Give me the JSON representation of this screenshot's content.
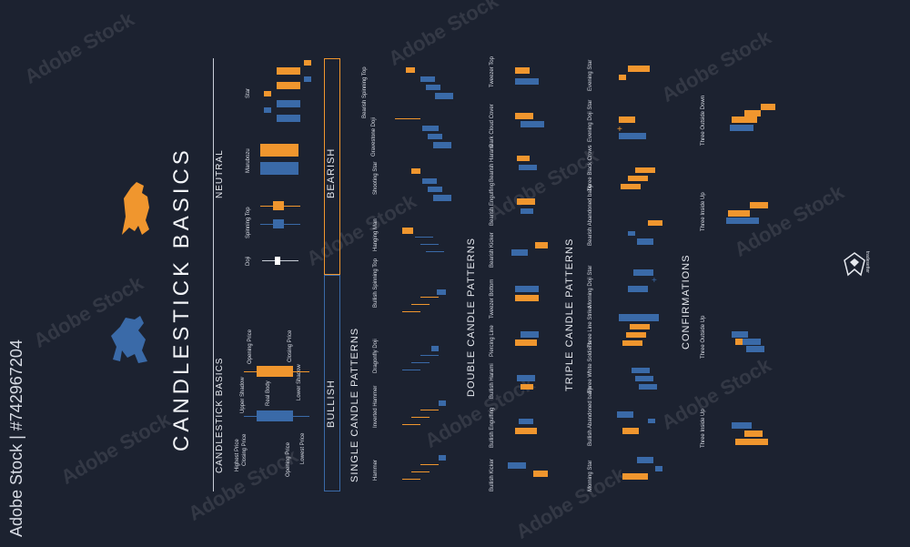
{
  "title": "CANDLESTICK BASICS",
  "sections": {
    "basics": "CANDLESTICK BASICS",
    "neutral": "NEUTRAL",
    "bearish": "BEARISH",
    "bullish": "BULLISH",
    "single": "SINGLE CANDLE PATTERNS",
    "double": "DOUBLE CANDLE PATTERNS",
    "triple": "TRIPLE CANDLE PATTERNS",
    "confirmations": "CONFIRMATIONS"
  },
  "basics_labels": {
    "highest_price": "Highest Price",
    "closing_price_left": "Closing Price",
    "upper_shadow": "Upper Shadow",
    "opening_price_top": "Opening Price",
    "real_body": "Real Body",
    "closing_price_right": "Closing Price",
    "opening_price_bottom": "Opening Price",
    "lower_shadow": "Lower Shadow",
    "lowest_price": "Lowest Price"
  },
  "neutral_patterns": [
    "Doji",
    "Spinning Top",
    "Marubozu",
    "Star"
  ],
  "single_bearish": [
    "Bearish Spinning Top",
    "Gravestone Doji",
    "Shooting Star",
    "Hanging Man"
  ],
  "single_bullish": [
    "Bullish Spinning Top",
    "Dragonfly Doji",
    "Inverted Hammer",
    "Hammer"
  ],
  "double_bearish": [
    "Tweezer Top",
    "Dark Cloud Cover",
    "Bearish Harami",
    "Bearish Engulfing",
    "Bearish Kicker"
  ],
  "double_bullish": [
    "Tweezer Bottom",
    "Piercing Line",
    "Bullish Harami",
    "Bullish Engulfing",
    "Bullish Kicker"
  ],
  "triple_bearish": [
    "Evening Star",
    "Evening Doji Star",
    "Three Black Crows",
    "Bearish Abandoned baby"
  ],
  "triple_bullish": [
    "Morning Doji Star",
    "Three Line Strike",
    "Three White Soldiers",
    "Bullish Abandoned baby",
    "Morning Star"
  ],
  "confirmations": [
    "Three Outside Down",
    "Three Inside Up",
    "Three Outside Up",
    "Three Inside Up"
  ],
  "watermark": "Adobe Stock",
  "stock_id": "Adobe Stock | #742967204",
  "logo_text": "tradesetter",
  "colors": {
    "background": "#1c2230",
    "bull": "#3a6aa8",
    "bear": "#f0962e",
    "text": "#e6e9ef"
  }
}
